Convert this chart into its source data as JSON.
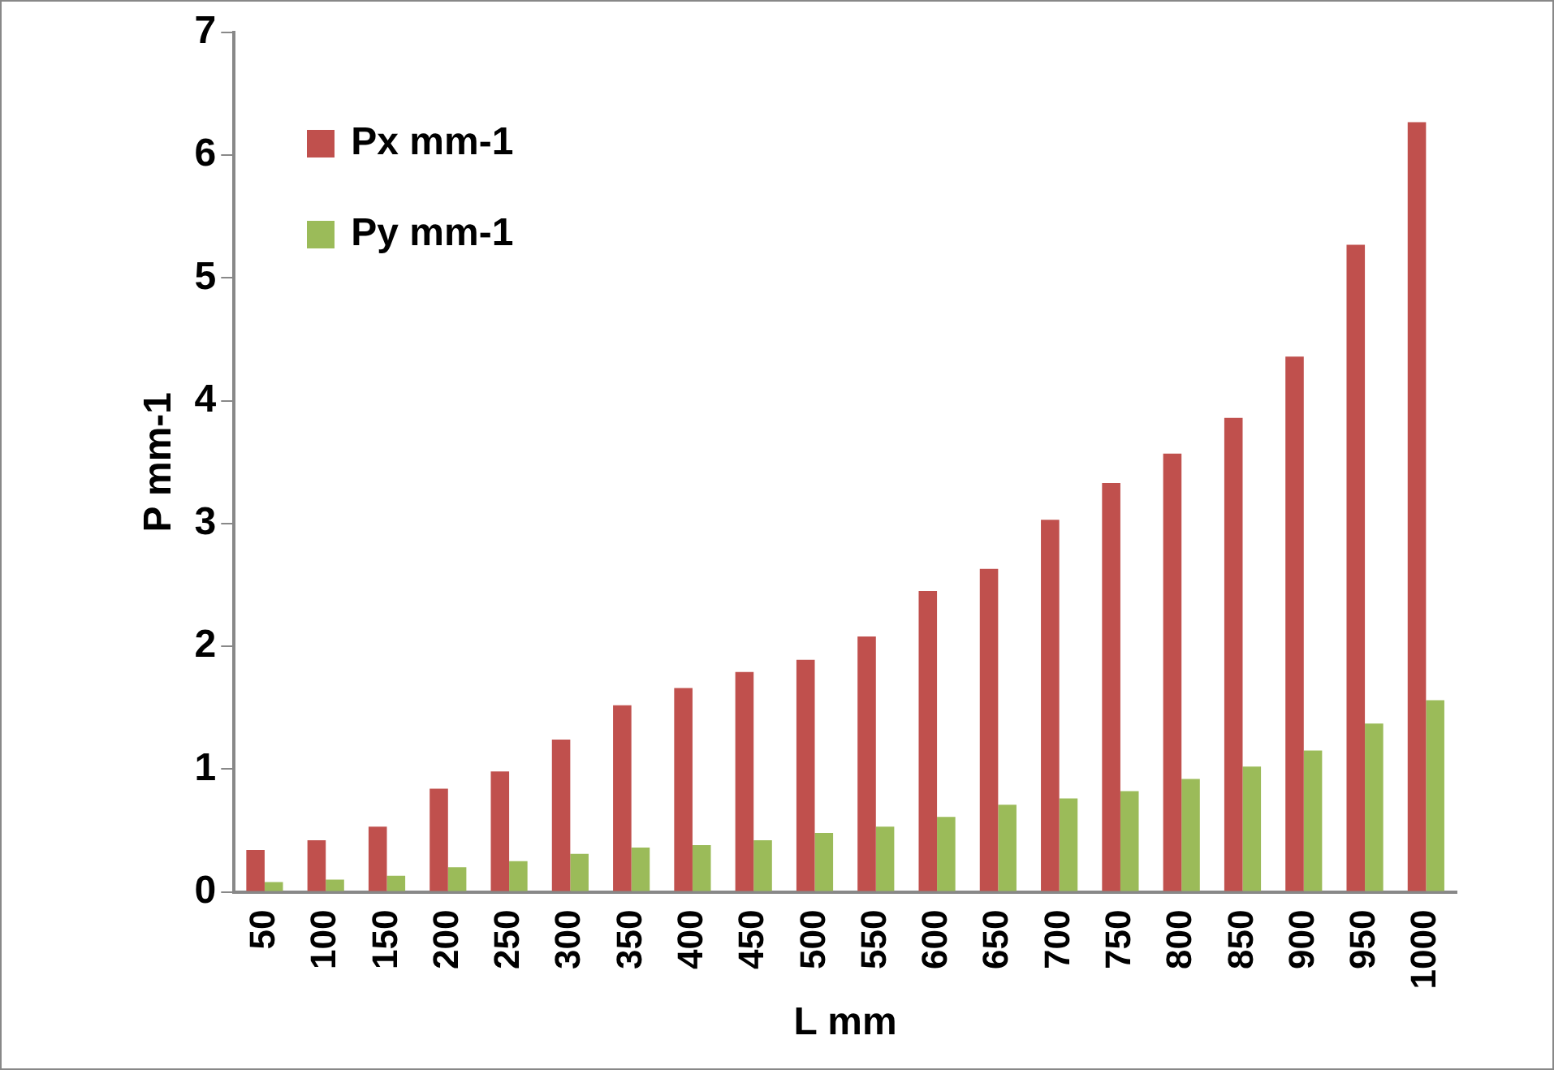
{
  "chart_data": {
    "type": "bar",
    "xlabel": "L mm",
    "ylabel": "P mm-1",
    "categories": [
      "50",
      "100",
      "150",
      "200",
      "250",
      "300",
      "350",
      "400",
      "450",
      "500",
      "550",
      "600",
      "650",
      "700",
      "750",
      "800",
      "850",
      "900",
      "950",
      "1000"
    ],
    "series": [
      {
        "name": "Px mm-1",
        "color": "#c0504d",
        "values": [
          0.34,
          0.42,
          0.53,
          0.84,
          0.98,
          1.24,
          1.52,
          1.66,
          1.79,
          1.89,
          2.08,
          2.45,
          2.63,
          3.03,
          3.33,
          3.57,
          3.86,
          4.36,
          5.27,
          6.27
        ]
      },
      {
        "name": "Py mm-1",
        "color": "#9bbb59",
        "values": [
          0.08,
          0.1,
          0.13,
          0.2,
          0.25,
          0.31,
          0.36,
          0.38,
          0.42,
          0.48,
          0.53,
          0.61,
          0.71,
          0.76,
          0.82,
          0.92,
          1.02,
          1.15,
          1.37,
          1.56
        ]
      }
    ],
    "ylim": [
      0,
      7
    ],
    "yticks": [
      0,
      1,
      2,
      3,
      4,
      5,
      6,
      7
    ],
    "grid": false,
    "legend": "top left"
  }
}
